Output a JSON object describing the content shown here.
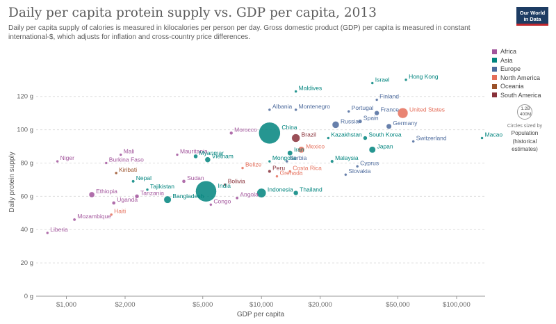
{
  "title": "Daily per capita protein supply vs. GDP per capita, 2013",
  "subtitle": "Daily per capita supply of calories is measured in kilocalories per person per day. Gross domestic product (GDP) per capita is measured in constant international-$, which adjusts for inflation and cross-country price differences.",
  "logo": {
    "line1": "Our World",
    "line2": "in Data"
  },
  "colors": {
    "Africa": "#a2559c",
    "Asia": "#00847e",
    "Europe": "#4c6a9c",
    "North America": "#e56e5a",
    "Oceania": "#9a5129",
    "South America": "#883039",
    "small_dot": "#5a6e9a"
  },
  "legend": {
    "items": [
      "Africa",
      "Asia",
      "Europe",
      "North America",
      "Oceania",
      "South America"
    ]
  },
  "size_legend": {
    "value": "1.2B",
    "value_small": "400M",
    "caption": "Circles sized by",
    "title_line1": "Population",
    "title_line2": "(historical",
    "title_line3": "estimates)"
  },
  "chart_data": {
    "type": "scatter",
    "title": "Daily per capita protein supply vs. GDP per capita, 2013",
    "xlabel": "GDP per capita",
    "ylabel": "Daily protein supply",
    "x_scale": "log",
    "xlim": [
      700,
      140000
    ],
    "ylim": [
      0,
      137
    ],
    "x_ticks": [
      {
        "value": 1000,
        "label": "$1,000"
      },
      {
        "value": 2000,
        "label": "$2,000"
      },
      {
        "value": 5000,
        "label": "$5,000"
      },
      {
        "value": 10000,
        "label": "$10,000"
      },
      {
        "value": 20000,
        "label": "$20,000"
      },
      {
        "value": 50000,
        "label": "$50,000"
      },
      {
        "value": 100000,
        "label": "$100,000"
      }
    ],
    "y_ticks": [
      {
        "value": 0,
        "label": "0 g"
      },
      {
        "value": 20,
        "label": "20 g"
      },
      {
        "value": 40,
        "label": "40 g"
      },
      {
        "value": 60,
        "label": "60 g"
      },
      {
        "value": 80,
        "label": "80 g"
      },
      {
        "value": 100,
        "label": "100 g"
      },
      {
        "value": 120,
        "label": "120 g"
      }
    ],
    "grid": "horizontal-dashed",
    "legend_position": "right",
    "points": [
      {
        "country": "Israel",
        "region": "Asia",
        "x": 37000,
        "y": 128,
        "pop": 8
      },
      {
        "country": "Hong Kong",
        "region": "Asia",
        "x": 55000,
        "y": 130,
        "pop": 7
      },
      {
        "country": "Maldives",
        "region": "Asia",
        "x": 15000,
        "y": 123,
        "pop": 0.4
      },
      {
        "country": "Finland",
        "region": "Europe",
        "x": 39000,
        "y": 118,
        "pop": 5.4
      },
      {
        "country": "Albania",
        "region": "Europe",
        "x": 11000,
        "y": 112,
        "pop": 2.9
      },
      {
        "country": "Montenegro",
        "region": "Europe",
        "x": 15000,
        "y": 112,
        "pop": 0.6
      },
      {
        "country": "Portugal",
        "region": "Europe",
        "x": 28000,
        "y": 111,
        "pop": 10
      },
      {
        "country": "France",
        "region": "Europe",
        "x": 39000,
        "y": 110,
        "pop": 66
      },
      {
        "country": "United States",
        "region": "North America",
        "x": 53000,
        "y": 110,
        "pop": 316
      },
      {
        "country": "China",
        "region": "Asia",
        "x": 11000,
        "y": 98,
        "pop": 1360
      },
      {
        "country": "Morocco",
        "region": "Africa",
        "x": 7000,
        "y": 98,
        "pop": 33
      },
      {
        "country": "Russia",
        "region": "Europe",
        "x": 24000,
        "y": 103,
        "pop": 143
      },
      {
        "country": "Spain",
        "region": "Europe",
        "x": 32000,
        "y": 105,
        "pop": 47
      },
      {
        "country": "Germany",
        "region": "Europe",
        "x": 45000,
        "y": 102,
        "pop": 81
      },
      {
        "country": "Kazakhstan",
        "region": "Asia",
        "x": 22000,
        "y": 95,
        "pop": 17
      },
      {
        "country": "South Korea",
        "region": "Asia",
        "x": 34000,
        "y": 95,
        "pop": 50
      },
      {
        "country": "Brazil",
        "region": "South America",
        "x": 15000,
        "y": 95,
        "pop": 202
      },
      {
        "country": "Switzerland",
        "region": "Europe",
        "x": 60000,
        "y": 93,
        "pop": 8
      },
      {
        "country": "Macao",
        "region": "Asia",
        "x": 135000,
        "y": 95,
        "pop": 0.6
      },
      {
        "country": "Japan",
        "region": "Asia",
        "x": 37000,
        "y": 88,
        "pop": 127
      },
      {
        "country": "Mexico",
        "region": "North America",
        "x": 16000,
        "y": 88,
        "pop": 122
      },
      {
        "country": "Iran",
        "region": "Asia",
        "x": 14000,
        "y": 86,
        "pop": 77
      },
      {
        "country": "Mali",
        "region": "Africa",
        "x": 1900,
        "y": 85,
        "pop": 16
      },
      {
        "country": "Mauritania",
        "region": "Africa",
        "x": 3700,
        "y": 85,
        "pop": 3.9
      },
      {
        "country": "Myanmar",
        "region": "Asia",
        "x": 4600,
        "y": 84,
        "pop": 52
      },
      {
        "country": "Vietnam",
        "region": "Asia",
        "x": 5300,
        "y": 82,
        "pop": 90
      },
      {
        "country": "Niger",
        "region": "Africa",
        "x": 900,
        "y": 81,
        "pop": 18
      },
      {
        "country": "Burkina Faso",
        "region": "Africa",
        "x": 1600,
        "y": 80,
        "pop": 17
      },
      {
        "country": "Mongolia",
        "region": "Asia",
        "x": 11000,
        "y": 81,
        "pop": 2.8
      },
      {
        "country": "Serbia",
        "region": "Europe",
        "x": 13500,
        "y": 81,
        "pop": 7.1
      },
      {
        "country": "Malaysia",
        "region": "Asia",
        "x": 23000,
        "y": 81,
        "pop": 30
      },
      {
        "country": "Cyprus",
        "region": "Europe",
        "x": 31000,
        "y": 78,
        "pop": 1.1
      },
      {
        "country": "Belize",
        "region": "North America",
        "x": 8000,
        "y": 77,
        "pop": 0.35
      },
      {
        "country": "Peru",
        "region": "South America",
        "x": 11000,
        "y": 75,
        "pop": 30
      },
      {
        "country": "Costa Rica",
        "region": "North America",
        "x": 14000,
        "y": 75,
        "pop": 4.7
      },
      {
        "country": "Kiribati",
        "region": "Oceania",
        "x": 1800,
        "y": 74,
        "pop": 0.1
      },
      {
        "country": "Slovakia",
        "region": "Europe",
        "x": 27000,
        "y": 73,
        "pop": 5.4
      },
      {
        "country": "Nepal",
        "region": "Asia",
        "x": 2200,
        "y": 69,
        "pop": 27
      },
      {
        "country": "Sudan",
        "region": "Africa",
        "x": 4000,
        "y": 69,
        "pop": 37
      },
      {
        "country": "Grenada",
        "region": "North America",
        "x": 12000,
        "y": 72,
        "pop": 0.1
      },
      {
        "country": "Bolivia",
        "region": "South America",
        "x": 6500,
        "y": 67,
        "pop": 10
      },
      {
        "country": "Tajikistan",
        "region": "Asia",
        "x": 2600,
        "y": 64,
        "pop": 8
      },
      {
        "country": "India",
        "region": "Asia",
        "x": 5200,
        "y": 63,
        "pop": 1280
      },
      {
        "country": "Indonesia",
        "region": "Asia",
        "x": 10000,
        "y": 62,
        "pop": 251
      },
      {
        "country": "Thailand",
        "region": "Asia",
        "x": 15000,
        "y": 62,
        "pop": 68
      },
      {
        "country": "Ethiopia",
        "region": "Africa",
        "x": 1350,
        "y": 61,
        "pop": 94
      },
      {
        "country": "Tanzania",
        "region": "Africa",
        "x": 2300,
        "y": 60,
        "pop": 50
      },
      {
        "country": "Bangladesh",
        "region": "Asia",
        "x": 3300,
        "y": 58,
        "pop": 157
      },
      {
        "country": "Angola",
        "region": "Africa",
        "x": 7500,
        "y": 59,
        "pop": 26
      },
      {
        "country": "Uganda",
        "region": "Africa",
        "x": 1750,
        "y": 56,
        "pop": 37
      },
      {
        "country": "Congo",
        "region": "Africa",
        "x": 5500,
        "y": 55,
        "pop": 4.5
      },
      {
        "country": "Haiti",
        "region": "North America",
        "x": 1700,
        "y": 49,
        "pop": 10
      },
      {
        "country": "Mozambique",
        "region": "Africa",
        "x": 1100,
        "y": 46,
        "pop": 26
      },
      {
        "country": "Liberia",
        "region": "Africa",
        "x": 800,
        "y": 38,
        "pop": 4.3
      }
    ]
  }
}
